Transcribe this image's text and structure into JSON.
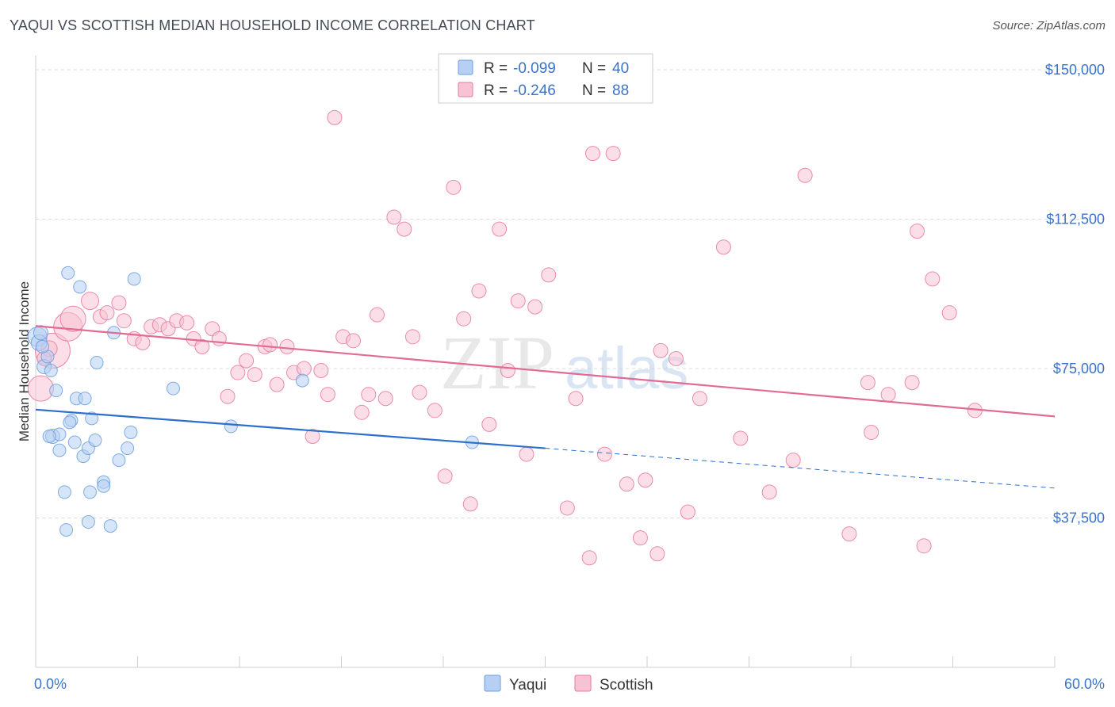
{
  "title": "YAQUI VS SCOTTISH MEDIAN HOUSEHOLD INCOME CORRELATION CHART",
  "source": "Source: ZipAtlas.com",
  "watermark": {
    "zip": "ZIP",
    "atlas": "atlas"
  },
  "colors": {
    "yaqui": "#6a9fe0",
    "yaqui_fill": "#b7cff2",
    "scottish": "#e8799e",
    "scottish_fill": "#f7c3d4",
    "yaqui_line": "#2d6fcc",
    "scottish_line": "#e26b95",
    "tick": "#3b73c8"
  },
  "legend": {
    "rows": [
      {
        "r_label": "R =",
        "r_value": "-0.099",
        "n_label": "N =",
        "n_value": "40"
      },
      {
        "r_label": "R =",
        "r_value": "-0.246",
        "n_label": "N =",
        "n_value": "88"
      }
    ]
  },
  "bottom_legend": [
    "Yaqui",
    "Scottish"
  ],
  "chart_data": {
    "type": "scatter",
    "title": "YAQUI VS SCOTTISH MEDIAN HOUSEHOLD INCOME CORRELATION CHART",
    "xlabel": "",
    "ylabel": "Median Household Income",
    "xlim": [
      0,
      60
    ],
    "ylim": [
      0,
      152000
    ],
    "x_tick_labels": [
      "0.0%",
      "60.0%"
    ],
    "y_ticks": [
      37500,
      75000,
      112500,
      150000
    ],
    "y_tick_labels": [
      "$37,500",
      "$75,000",
      "$112,500",
      "$150,000"
    ],
    "series": [
      {
        "name": "Yaqui",
        "R": -0.099,
        "N": 40,
        "trend": {
          "x0": 0,
          "y0": 64700,
          "x1": 30,
          "y1": 55000,
          "dash_to_x": 60,
          "dash_to_y": 45000
        },
        "points": [
          {
            "x": 0.1,
            "y": 83000,
            "s": 12
          },
          {
            "x": 0.2,
            "y": 81500,
            "s": 10
          },
          {
            "x": 0.3,
            "y": 84000,
            "s": 9
          },
          {
            "x": 0.5,
            "y": 75500,
            "s": 9
          },
          {
            "x": 0.7,
            "y": 78000,
            "s": 8
          },
          {
            "x": 0.9,
            "y": 74500,
            "s": 8
          },
          {
            "x": 1.0,
            "y": 58000,
            "s": 9
          },
          {
            "x": 1.2,
            "y": 69500,
            "s": 8
          },
          {
            "x": 1.4,
            "y": 54500,
            "s": 8
          },
          {
            "x": 1.4,
            "y": 58500,
            "s": 8
          },
          {
            "x": 1.7,
            "y": 44000,
            "s": 8
          },
          {
            "x": 1.8,
            "y": 34500,
            "s": 8
          },
          {
            "x": 1.9,
            "y": 99000,
            "s": 8
          },
          {
            "x": 2.1,
            "y": 62000,
            "s": 8
          },
          {
            "x": 2.3,
            "y": 56500,
            "s": 8
          },
          {
            "x": 2.4,
            "y": 67500,
            "s": 8
          },
          {
            "x": 2.6,
            "y": 95500,
            "s": 8
          },
          {
            "x": 2.8,
            "y": 53000,
            "s": 8
          },
          {
            "x": 2.9,
            "y": 67500,
            "s": 8
          },
          {
            "x": 3.1,
            "y": 55000,
            "s": 8
          },
          {
            "x": 3.1,
            "y": 36500,
            "s": 8
          },
          {
            "x": 3.2,
            "y": 44000,
            "s": 8
          },
          {
            "x": 3.3,
            "y": 62500,
            "s": 8
          },
          {
            "x": 3.5,
            "y": 57000,
            "s": 8
          },
          {
            "x": 3.6,
            "y": 76500,
            "s": 8
          },
          {
            "x": 4.0,
            "y": 46500,
            "s": 8
          },
          {
            "x": 4.0,
            "y": 45500,
            "s": 8
          },
          {
            "x": 4.4,
            "y": 35500,
            "s": 8
          },
          {
            "x": 4.6,
            "y": 84000,
            "s": 8
          },
          {
            "x": 4.9,
            "y": 52000,
            "s": 8
          },
          {
            "x": 5.4,
            "y": 55000,
            "s": 8
          },
          {
            "x": 5.6,
            "y": 59000,
            "s": 8
          },
          {
            "x": 5.8,
            "y": 97500,
            "s": 8
          },
          {
            "x": 8.1,
            "y": 70000,
            "s": 8
          },
          {
            "x": 11.5,
            "y": 60500,
            "s": 8
          },
          {
            "x": 15.7,
            "y": 72000,
            "s": 8
          },
          {
            "x": 25.7,
            "y": 56500,
            "s": 8
          },
          {
            "x": 2.0,
            "y": 61500,
            "s": 8
          },
          {
            "x": 0.8,
            "y": 58000,
            "s": 8
          },
          {
            "x": 0.4,
            "y": 80500,
            "s": 8
          }
        ]
      },
      {
        "name": "Scottish",
        "R": -0.246,
        "N": 88,
        "trend": {
          "x0": 0,
          "y0": 85700,
          "x1": 60,
          "y1": 63000
        },
        "points": [
          {
            "x": 0.3,
            "y": 70000,
            "s": 16
          },
          {
            "x": 1.0,
            "y": 79500,
            "s": 22
          },
          {
            "x": 1.9,
            "y": 85500,
            "s": 18
          },
          {
            "x": 2.2,
            "y": 87500,
            "s": 16
          },
          {
            "x": 0.8,
            "y": 80000,
            "s": 10
          },
          {
            "x": 3.2,
            "y": 92000,
            "s": 11
          },
          {
            "x": 3.8,
            "y": 88000,
            "s": 9
          },
          {
            "x": 4.2,
            "y": 89000,
            "s": 9
          },
          {
            "x": 4.9,
            "y": 91500,
            "s": 9
          },
          {
            "x": 5.2,
            "y": 87000,
            "s": 9
          },
          {
            "x": 5.8,
            "y": 82500,
            "s": 9
          },
          {
            "x": 6.3,
            "y": 81500,
            "s": 9
          },
          {
            "x": 6.8,
            "y": 85500,
            "s": 9
          },
          {
            "x": 7.3,
            "y": 86000,
            "s": 9
          },
          {
            "x": 7.8,
            "y": 85000,
            "s": 9
          },
          {
            "x": 8.3,
            "y": 87000,
            "s": 9
          },
          {
            "x": 8.9,
            "y": 86500,
            "s": 9
          },
          {
            "x": 9.3,
            "y": 82500,
            "s": 9
          },
          {
            "x": 9.8,
            "y": 80500,
            "s": 9
          },
          {
            "x": 10.4,
            "y": 85000,
            "s": 9
          },
          {
            "x": 10.8,
            "y": 82500,
            "s": 9
          },
          {
            "x": 11.3,
            "y": 68000,
            "s": 9
          },
          {
            "x": 11.9,
            "y": 74000,
            "s": 9
          },
          {
            "x": 12.4,
            "y": 77000,
            "s": 9
          },
          {
            "x": 12.9,
            "y": 73500,
            "s": 9
          },
          {
            "x": 13.5,
            "y": 80500,
            "s": 9
          },
          {
            "x": 13.8,
            "y": 81000,
            "s": 9
          },
          {
            "x": 14.2,
            "y": 71000,
            "s": 9
          },
          {
            "x": 14.8,
            "y": 80500,
            "s": 9
          },
          {
            "x": 15.2,
            "y": 74000,
            "s": 9
          },
          {
            "x": 15.8,
            "y": 75000,
            "s": 9
          },
          {
            "x": 16.3,
            "y": 58000,
            "s": 9
          },
          {
            "x": 16.8,
            "y": 74500,
            "s": 9
          },
          {
            "x": 17.2,
            "y": 68500,
            "s": 9
          },
          {
            "x": 17.6,
            "y": 138000,
            "s": 9
          },
          {
            "x": 18.1,
            "y": 83000,
            "s": 9
          },
          {
            "x": 18.7,
            "y": 82000,
            "s": 9
          },
          {
            "x": 19.2,
            "y": 64000,
            "s": 9
          },
          {
            "x": 19.6,
            "y": 68500,
            "s": 9
          },
          {
            "x": 20.1,
            "y": 88500,
            "s": 9
          },
          {
            "x": 20.6,
            "y": 67500,
            "s": 9
          },
          {
            "x": 21.1,
            "y": 113000,
            "s": 9
          },
          {
            "x": 21.7,
            "y": 110000,
            "s": 9
          },
          {
            "x": 22.2,
            "y": 83000,
            "s": 9
          },
          {
            "x": 22.6,
            "y": 69000,
            "s": 9
          },
          {
            "x": 23.5,
            "y": 64500,
            "s": 9
          },
          {
            "x": 24.1,
            "y": 48000,
            "s": 9
          },
          {
            "x": 24.6,
            "y": 120500,
            "s": 9
          },
          {
            "x": 25.2,
            "y": 87500,
            "s": 9
          },
          {
            "x": 25.6,
            "y": 41000,
            "s": 9
          },
          {
            "x": 26.1,
            "y": 94500,
            "s": 9
          },
          {
            "x": 26.7,
            "y": 61000,
            "s": 9
          },
          {
            "x": 27.3,
            "y": 110000,
            "s": 9
          },
          {
            "x": 27.8,
            "y": 74500,
            "s": 9
          },
          {
            "x": 28.4,
            "y": 92000,
            "s": 9
          },
          {
            "x": 28.9,
            "y": 53500,
            "s": 9
          },
          {
            "x": 29.4,
            "y": 90500,
            "s": 9
          },
          {
            "x": 30.2,
            "y": 98500,
            "s": 9
          },
          {
            "x": 31.3,
            "y": 40000,
            "s": 9
          },
          {
            "x": 31.8,
            "y": 67500,
            "s": 9
          },
          {
            "x": 32.6,
            "y": 27500,
            "s": 9
          },
          {
            "x": 32.8,
            "y": 129000,
            "s": 9
          },
          {
            "x": 33.5,
            "y": 53500,
            "s": 9
          },
          {
            "x": 34.0,
            "y": 129000,
            "s": 9
          },
          {
            "x": 34.8,
            "y": 46000,
            "s": 9
          },
          {
            "x": 35.6,
            "y": 32500,
            "s": 9
          },
          {
            "x": 35.9,
            "y": 47000,
            "s": 9
          },
          {
            "x": 36.6,
            "y": 28500,
            "s": 9
          },
          {
            "x": 36.8,
            "y": 79500,
            "s": 9
          },
          {
            "x": 37.7,
            "y": 77500,
            "s": 9
          },
          {
            "x": 38.4,
            "y": 39000,
            "s": 9
          },
          {
            "x": 39.1,
            "y": 67500,
            "s": 9
          },
          {
            "x": 40.5,
            "y": 105500,
            "s": 9
          },
          {
            "x": 41.5,
            "y": 57500,
            "s": 9
          },
          {
            "x": 43.2,
            "y": 44000,
            "s": 9
          },
          {
            "x": 44.6,
            "y": 52000,
            "s": 9
          },
          {
            "x": 45.3,
            "y": 123500,
            "s": 9
          },
          {
            "x": 47.9,
            "y": 33500,
            "s": 9
          },
          {
            "x": 49.0,
            "y": 71500,
            "s": 9
          },
          {
            "x": 49.2,
            "y": 59000,
            "s": 9
          },
          {
            "x": 50.2,
            "y": 68500,
            "s": 9
          },
          {
            "x": 51.6,
            "y": 71500,
            "s": 9
          },
          {
            "x": 51.9,
            "y": 109500,
            "s": 9
          },
          {
            "x": 52.3,
            "y": 30500,
            "s": 9
          },
          {
            "x": 52.8,
            "y": 97500,
            "s": 9
          },
          {
            "x": 53.8,
            "y": 89000,
            "s": 9
          },
          {
            "x": 55.3,
            "y": 64500,
            "s": 9
          },
          {
            "x": 0.5,
            "y": 77500,
            "s": 9
          }
        ]
      }
    ]
  }
}
